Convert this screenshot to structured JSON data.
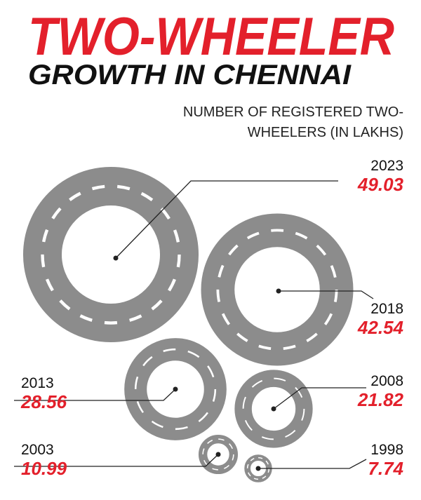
{
  "chart_data": {
    "type": "ring",
    "title": "TWO-WHEELER",
    "subtitle": "GROWTH IN CHENNAI",
    "axis_label": "NUMBER OF REGISTERED TWO-WHEELERS (IN LAKHS)",
    "categories": [
      "2023",
      "2018",
      "2013",
      "2008",
      "2003",
      "1998"
    ],
    "values": [
      49.03,
      42.54,
      28.56,
      21.82,
      10.99,
      7.74
    ],
    "color": "#8c8c8c",
    "value_color": "#e3202b"
  }
}
